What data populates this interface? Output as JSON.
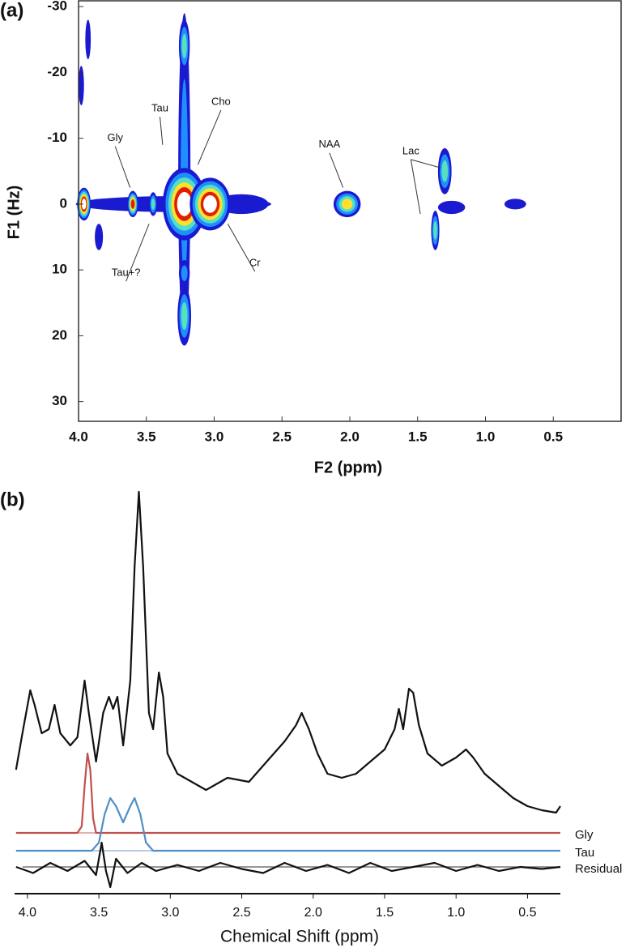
{
  "chart_data": [
    {
      "type": "contour",
      "panel_label": "(a)",
      "xlabel": "F2 (ppm)",
      "ylabel": "F1 (Hz)",
      "xlim": [
        4.0,
        0.0
      ],
      "ylim": [
        -31,
        33
      ],
      "xticks": [
        {
          "value": 4.0,
          "label": "4.0"
        },
        3.5,
        {
          "value": 3.0,
          "label": "3.0"
        },
        2.5,
        {
          "value": 2.0,
          "label": "2.0"
        },
        1.5,
        {
          "value": 1.0,
          "label": "1.0"
        },
        0.5
      ],
      "yticks": [
        -30,
        -20,
        -10,
        0,
        10,
        20,
        30
      ],
      "colors": [
        "#1a1ad0",
        "#1f8fff",
        "#55e0c0",
        "#ffe030",
        "#e02000",
        "#ffffff"
      ],
      "peaks": [
        {
          "x": 3.3,
          "y": 0,
          "dx": 0.72,
          "dy": 1.2,
          "levels": 1
        },
        {
          "x": 3.22,
          "y": -4,
          "dx": 0.045,
          "dy": 25,
          "levels": 2
        },
        {
          "x": 3.22,
          "y": -24,
          "dx": 0.04,
          "dy": 4,
          "levels": 3
        },
        {
          "x": 3.22,
          "y": 17,
          "dx": 0.05,
          "dy": 4.5,
          "levels": 3
        },
        {
          "x": 3.22,
          "y": 10.5,
          "dx": 0.04,
          "dy": 2,
          "levels": 2
        },
        {
          "x": 3.96,
          "y": 0,
          "dx": 0.05,
          "dy": 2.5,
          "levels": 6
        },
        {
          "x": 3.6,
          "y": 0,
          "dx": 0.04,
          "dy": 2,
          "levels": 5
        },
        {
          "x": 3.45,
          "y": 0,
          "dx": 0.03,
          "dy": 1.8,
          "levels": 3
        },
        {
          "x": 2.8,
          "y": 0,
          "dx": 0.2,
          "dy": 1.5,
          "levels": 1
        },
        {
          "x": 3.22,
          "y": 0,
          "dx": 0.16,
          "dy": 5.5,
          "levels": 6
        },
        {
          "x": 3.03,
          "y": 0,
          "dx": 0.15,
          "dy": 4,
          "levels": 6
        },
        {
          "x": 2.02,
          "y": 0,
          "dx": 0.1,
          "dy": 2,
          "levels": 4
        },
        {
          "x": 1.3,
          "y": -5,
          "dx": 0.05,
          "dy": 3.5,
          "levels": 3
        },
        {
          "x": 1.37,
          "y": 4,
          "dx": 0.03,
          "dy": 3,
          "levels": 3
        },
        {
          "x": 1.25,
          "y": 0.5,
          "dx": 0.1,
          "dy": 1,
          "levels": 1
        },
        {
          "x": 0.78,
          "y": 0,
          "dx": 0.08,
          "dy": 0.8,
          "levels": 1
        },
        {
          "x": 3.98,
          "y": -18,
          "dx": 0.02,
          "dy": 3,
          "levels": 1
        },
        {
          "x": 3.93,
          "y": -25,
          "dx": 0.02,
          "dy": 3,
          "levels": 1
        },
        {
          "x": 3.85,
          "y": 5,
          "dx": 0.03,
          "dy": 2,
          "levels": 1
        }
      ],
      "annotations": [
        {
          "text": "Tau",
          "xytext": [
            3.4,
            -14.5
          ],
          "xy": [
            [
              3.38,
              -9
            ]
          ]
        },
        {
          "text": "Cho",
          "xytext": [
            2.95,
            -15.5
          ],
          "xy": [
            [
              3.12,
              -6
            ]
          ]
        },
        {
          "text": "Gly",
          "xytext": [
            3.73,
            -10
          ],
          "xy": [
            [
              3.62,
              -2.5
            ]
          ]
        },
        {
          "text": "NAA",
          "xytext": [
            2.15,
            -9
          ],
          "xy": [
            [
              2.05,
              -2.5
            ]
          ]
        },
        {
          "text": "Lac",
          "xytext": [
            1.55,
            -8
          ],
          "xy": [
            [
              1.33,
              -5.5
            ],
            [
              1.48,
              1.5
            ]
          ]
        },
        {
          "text": "Tau+?",
          "xytext": [
            3.65,
            10.5
          ],
          "xy": [
            [
              3.48,
              3
            ]
          ]
        },
        {
          "text": "Cr",
          "xytext": [
            2.7,
            9
          ],
          "xy": [
            [
              2.9,
              3
            ]
          ]
        }
      ]
    },
    {
      "type": "line",
      "panel_label": "(b)",
      "xlabel": "Chemical Shift (ppm)",
      "xlim": [
        4.09,
        0.27
      ],
      "ylim": [
        0,
        100
      ],
      "xticks": [
        {
          "value": 4.0,
          "label": "4.0"
        },
        3.5,
        {
          "value": 3.0,
          "label": "3.0"
        },
        2.5,
        {
          "value": 2.0,
          "label": "2.0"
        },
        1.5,
        {
          "value": 1.0,
          "label": "1.0"
        },
        0.5
      ],
      "series": [
        {
          "color": "#111111",
          "x": [
            4.08,
            4.03,
            3.98,
            3.95,
            3.9,
            3.85,
            3.81,
            3.77,
            3.7,
            3.65,
            3.6,
            3.57,
            3.52,
            3.47,
            3.43,
            3.4,
            3.37,
            3.33,
            3.28,
            3.25,
            3.22,
            3.19,
            3.15,
            3.12,
            3.08,
            3.05,
            3.02,
            2.95,
            2.85,
            2.75,
            2.6,
            2.45,
            2.3,
            2.2,
            2.12,
            2.08,
            2.03,
            1.97,
            1.9,
            1.8,
            1.7,
            1.6,
            1.5,
            1.43,
            1.4,
            1.37,
            1.33,
            1.3,
            1.26,
            1.2,
            1.1,
            1.0,
            0.93,
            0.88,
            0.8,
            0.7,
            0.6,
            0.5,
            0.4,
            0.3,
            0.27
          ],
          "values": [
            30,
            40,
            49.6,
            46,
            39,
            40,
            46,
            39,
            36,
            38,
            52,
            44,
            32,
            44,
            48,
            45,
            48,
            36,
            52,
            80,
            98.6,
            80,
            44,
            40,
            54,
            48,
            34,
            29,
            27,
            25,
            28,
            27,
            33,
            37,
            41,
            44,
            40,
            34,
            29,
            28,
            29,
            32,
            35,
            40,
            45,
            40,
            50,
            49,
            41,
            34,
            31,
            33,
            35,
            33,
            29,
            26,
            23,
            21,
            20,
            19.4,
            21
          ]
        },
        {
          "name": "Gly",
          "color": "#c0504d",
          "x": [
            4.08,
            3.65,
            3.62,
            3.6,
            3.58,
            3.56,
            3.54,
            3.52,
            0.27
          ],
          "values": [
            14.4,
            14.4,
            16,
            26,
            34,
            30,
            18,
            14.4,
            14.4
          ]
        },
        {
          "name": "Tau",
          "color": "#4f8fc8",
          "x": [
            4.08,
            3.55,
            3.5,
            3.46,
            3.42,
            3.38,
            3.33,
            3.28,
            3.25,
            3.21,
            3.17,
            3.12,
            0.27
          ],
          "values": [
            10,
            10,
            12,
            19,
            23,
            21,
            17,
            21,
            23,
            19,
            12,
            10,
            10
          ]
        },
        {
          "name": "Residual",
          "color": "#111111",
          "x": [
            4.08,
            3.96,
            3.84,
            3.72,
            3.6,
            3.52,
            3.48,
            3.45,
            3.42,
            3.38,
            3.3,
            3.2,
            3.1,
            2.95,
            2.8,
            2.65,
            2.5,
            2.35,
            2.2,
            2.05,
            1.9,
            1.75,
            1.6,
            1.45,
            1.3,
            1.15,
            1.0,
            0.85,
            0.7,
            0.55,
            0.4,
            0.27
          ],
          "values": [
            6,
            4.5,
            7,
            5,
            7.5,
            4,
            12,
            5,
            1,
            8,
            4.5,
            7,
            5,
            6.5,
            5,
            7,
            5.5,
            4.5,
            7,
            5,
            6.5,
            4.5,
            7,
            5,
            6,
            7,
            5,
            6.5,
            5,
            6,
            5.5,
            6
          ]
        }
      ]
    }
  ]
}
